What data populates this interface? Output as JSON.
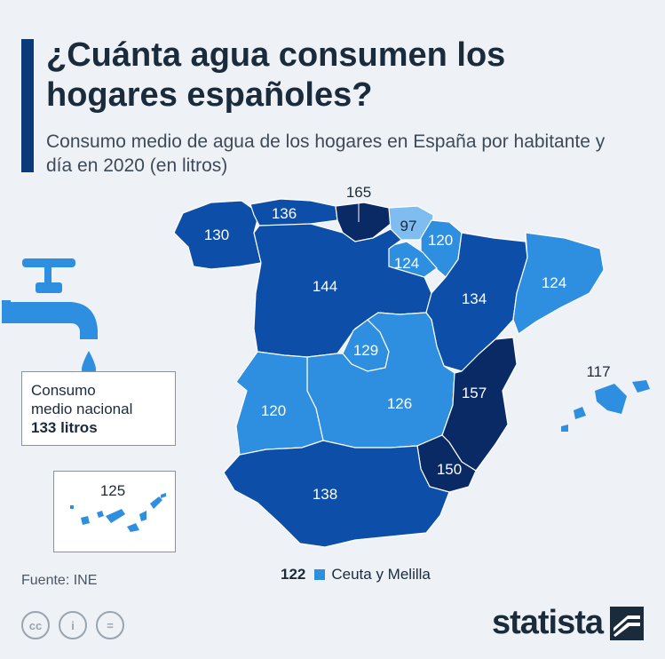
{
  "title": "¿Cuánta agua consumen los hogares españoles?",
  "subtitle": "Consumo medio de agua de los hogares en España por habitante y día en 2020 (en litros)",
  "national": {
    "line1": "Consumo",
    "line2": "medio nacional",
    "value": "133 litros"
  },
  "regions": [
    {
      "name": "Galicia",
      "value": "130"
    },
    {
      "name": "Asturias",
      "value": "136"
    },
    {
      "name": "Cantabria",
      "value": "165"
    },
    {
      "name": "País Vasco",
      "value": "97"
    },
    {
      "name": "Navarra",
      "value": "120"
    },
    {
      "name": "La Rioja",
      "value": "124"
    },
    {
      "name": "Cataluña",
      "value": "124"
    },
    {
      "name": "Castilla y León",
      "value": "144"
    },
    {
      "name": "Aragón",
      "value": "134"
    },
    {
      "name": "Madrid",
      "value": "129"
    },
    {
      "name": "Extremadura",
      "value": "120"
    },
    {
      "name": "Castilla-La Mancha",
      "value": "126"
    },
    {
      "name": "Comunidad Valenciana",
      "value": "157"
    },
    {
      "name": "Murcia",
      "value": "150"
    },
    {
      "name": "Andalucía",
      "value": "138"
    },
    {
      "name": "Islas Baleares",
      "value": "117"
    },
    {
      "name": "Canarias",
      "value": "125"
    }
  ],
  "legend": {
    "value": "122",
    "label": "Ceuta y Melilla",
    "color": "#2e8fe0"
  },
  "colors": {
    "darkest": "#0a2a66",
    "dark": "#0d4fa8",
    "medium": "#2e8fe0",
    "light": "#7fbcef",
    "tap": "#2e8fe0"
  },
  "source": "Fuente: INE",
  "logo": "statista",
  "license_icons": [
    "cc-icon",
    "person-icon",
    "equals-icon"
  ]
}
